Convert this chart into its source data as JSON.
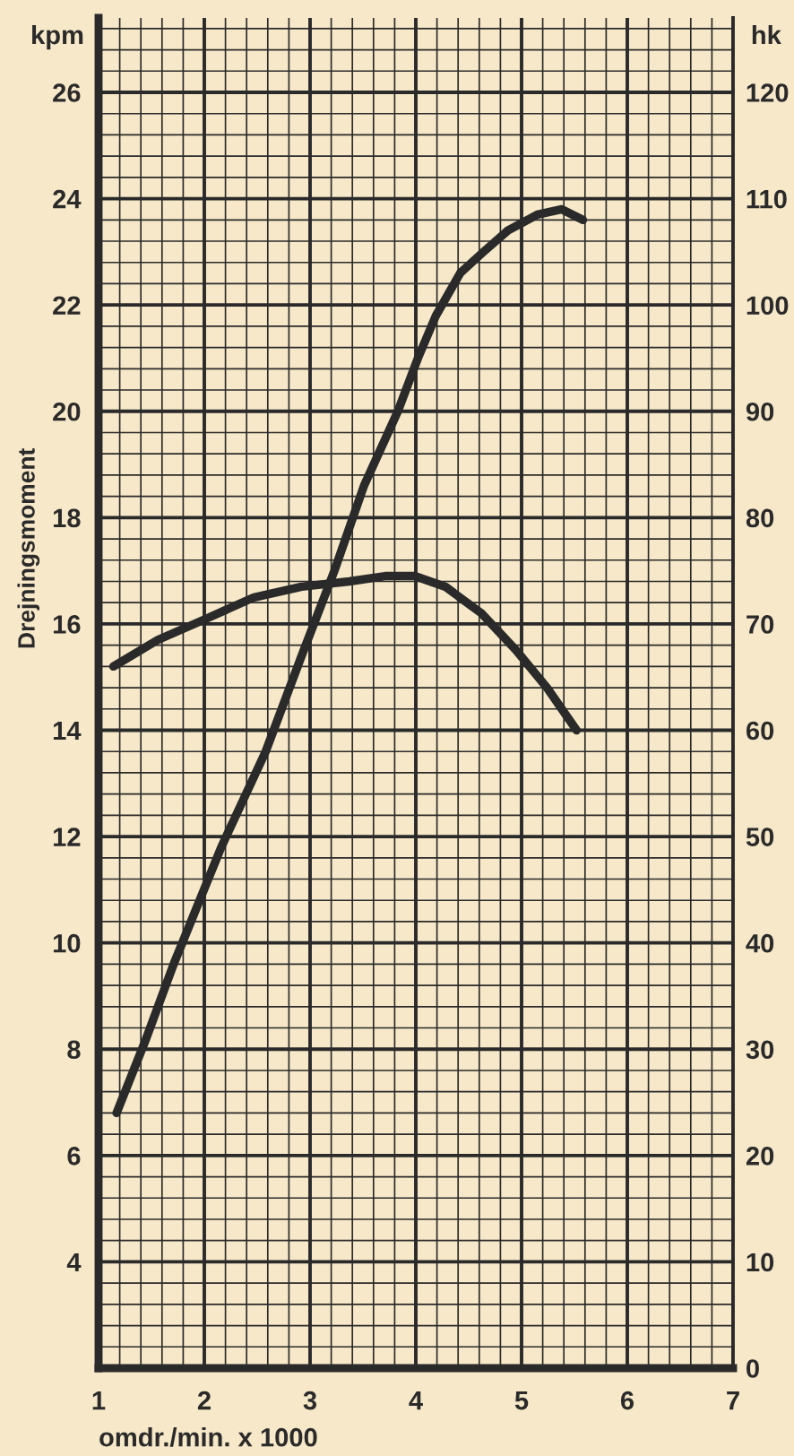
{
  "chart_data": {
    "type": "line",
    "xlabel": "omdr./min. x 1000",
    "ylabel": "Drejningsmoment",
    "y2label": "hk",
    "annotations": [
      "kpm"
    ],
    "xlim": [
      1,
      7
    ],
    "xticks": [
      1,
      {
        "value": 1.2,
        "label": null
      },
      {
        "value": 1.4,
        "label": null
      },
      {
        "value": 1.6,
        "label": null
      },
      {
        "value": 1.8,
        "label": null
      },
      2,
      {
        "value": 2.2,
        "label": null
      },
      {
        "value": 2.4,
        "label": null
      },
      {
        "value": 2.6,
        "label": null
      },
      {
        "value": 2.8,
        "label": null
      },
      3,
      {
        "value": 3.2,
        "label": null
      },
      {
        "value": 3.4,
        "label": null
      },
      {
        "value": 3.6,
        "label": null
      },
      {
        "value": 3.8,
        "label": null
      },
      4,
      {
        "value": 4.2,
        "label": null
      },
      {
        "value": 4.4,
        "label": null
      },
      {
        "value": 4.6,
        "label": null
      },
      {
        "value": 4.8,
        "label": null
      },
      5,
      {
        "value": 5.2,
        "label": null
      },
      {
        "value": 5.4,
        "label": null
      },
      {
        "value": 5.6,
        "label": null
      },
      {
        "value": 5.8,
        "label": null
      },
      6,
      {
        "value": 6.2,
        "label": null
      },
      {
        "value": 6.4,
        "label": null
      },
      {
        "value": 6.6,
        "label": null
      },
      {
        "value": 6.8,
        "label": null
      },
      7
    ],
    "ylim": [
      2,
      27.4
    ],
    "yticks": [
      {
        "value": 2,
        "label": null
      },
      {
        "value": 2.4,
        "label": null
      },
      {
        "value": 2.8,
        "label": null
      },
      {
        "value": 3.2,
        "label": null
      },
      {
        "value": 3.6,
        "label": null
      },
      4,
      {
        "value": 4.4,
        "label": null
      },
      {
        "value": 4.8,
        "label": null
      },
      {
        "value": 5.2,
        "label": null
      },
      {
        "value": 5.6,
        "label": null
      },
      6,
      {
        "value": 6.4,
        "label": null
      },
      {
        "value": 6.8,
        "label": null
      },
      {
        "value": 7.2,
        "label": null
      },
      {
        "value": 7.6,
        "label": null
      },
      8,
      {
        "value": 8.4,
        "label": null
      },
      {
        "value": 8.8,
        "label": null
      },
      {
        "value": 9.2,
        "label": null
      },
      {
        "value": 9.6,
        "label": null
      },
      10,
      {
        "value": 10.4,
        "label": null
      },
      {
        "value": 10.8,
        "label": null
      },
      {
        "value": 11.2,
        "label": null
      },
      {
        "value": 11.6,
        "label": null
      },
      12,
      {
        "value": 12.4,
        "label": null
      },
      {
        "value": 12.8,
        "label": null
      },
      {
        "value": 13.2,
        "label": null
      },
      {
        "value": 13.6,
        "label": null
      },
      14,
      {
        "value": 14.4,
        "label": null
      },
      {
        "value": 14.8,
        "label": null
      },
      {
        "value": 15.2,
        "label": null
      },
      {
        "value": 15.6,
        "label": null
      },
      16,
      {
        "value": 16.4,
        "label": null
      },
      {
        "value": 16.8,
        "label": null
      },
      {
        "value": 17.2,
        "label": null
      },
      {
        "value": 17.6,
        "label": null
      },
      18,
      {
        "value": 18.4,
        "label": null
      },
      {
        "value": 18.8,
        "label": null
      },
      {
        "value": 19.2,
        "label": null
      },
      {
        "value": 19.6,
        "label": null
      },
      20,
      {
        "value": 20.4,
        "label": null
      },
      {
        "value": 20.8,
        "label": null
      },
      {
        "value": 21.2,
        "label": null
      },
      {
        "value": 21.6,
        "label": null
      },
      22,
      {
        "value": 22.4,
        "label": null
      },
      {
        "value": 22.8,
        "label": null
      },
      {
        "value": 23.2,
        "label": null
      },
      {
        "value": 23.6,
        "label": null
      },
      24,
      {
        "value": 24.4,
        "label": null
      },
      {
        "value": 24.8,
        "label": null
      },
      {
        "value": 25.2,
        "label": null
      },
      {
        "value": 25.6,
        "label": null
      },
      26,
      {
        "value": 26.4,
        "label": null
      },
      {
        "value": 26.8,
        "label": null
      },
      {
        "value": 27.2,
        "label": null
      }
    ],
    "y2lim": [
      0,
      127
    ],
    "y2ticks": [
      0,
      10,
      20,
      30,
      40,
      50,
      60,
      70,
      80,
      90,
      100,
      110,
      120
    ],
    "grid": true,
    "series": [
      {
        "color": "#2a2a2a",
        "x": [
          1.14,
          1.56,
          2.02,
          2.47,
          2.92,
          3.37,
          3.71,
          3.99,
          4.28,
          4.62,
          4.95,
          5.24,
          5.52
        ],
        "values": [
          15.2,
          15.7,
          16.1,
          16.5,
          16.7,
          16.8,
          16.9,
          16.9,
          16.7,
          16.2,
          15.5,
          14.8,
          14.0
        ]
      },
      {
        "color": "#2a2a2a",
        "axis": "y2",
        "x": [
          1.17,
          1.45,
          1.71,
          2.16,
          2.58,
          2.92,
          3.23,
          3.51,
          3.83,
          4.02,
          4.19,
          4.42,
          4.64,
          4.87,
          5.15,
          5.38,
          5.58
        ],
        "values": [
          24,
          31,
          38,
          49,
          58,
          67,
          75,
          83,
          90,
          95,
          99,
          103,
          105,
          107,
          108.5,
          109,
          108
        ]
      }
    ]
  }
}
